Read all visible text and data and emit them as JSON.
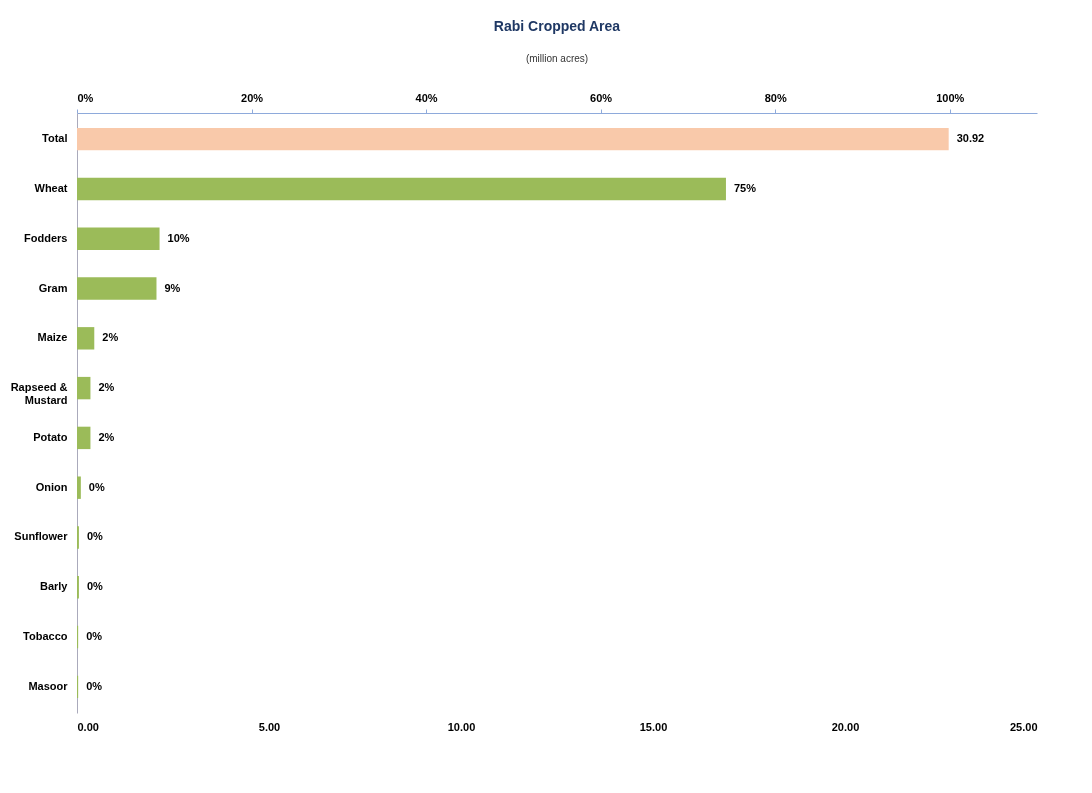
{
  "chart_data": {
    "type": "bar",
    "orientation": "horizontal",
    "title": "Rabi Cropped Area",
    "subtitle": "(million acres)",
    "categories": [
      "Total",
      "Wheat",
      "Fodders",
      "Gram",
      "Maize",
      "Rapseed & Mustard",
      "Potato",
      "Onion",
      "Sunflower",
      "Barly",
      "Tobacco",
      "Masoor"
    ],
    "values": [
      22.7,
      16.9,
      2.15,
      2.07,
      0.45,
      0.35,
      0.35,
      0.1,
      0.05,
      0.05,
      0.03,
      0.03
    ],
    "colors": [
      "#f9c9aa",
      "#9bbb59",
      "#9bbb59",
      "#9bbb59",
      "#9bbb59",
      "#9bbb59",
      "#9bbb59",
      "#9bbb59",
      "#9bbb59",
      "#9bbb59",
      "#9bbb59",
      "#9bbb59"
    ],
    "annotations": [
      {
        "text": "30.92",
        "x": 22.7,
        "y": "Total"
      },
      {
        "text": "75%",
        "x": 16.9,
        "y": "Wheat"
      },
      {
        "text": "10%",
        "x": 2.15,
        "y": "Fodders"
      },
      {
        "text": "9%",
        "x": 2.07,
        "y": "Gram"
      },
      {
        "text": "2%",
        "x": 0.45,
        "y": "Maize"
      },
      {
        "text": "2%",
        "x": 0.35,
        "y": "Rapseed & Mustard"
      },
      {
        "text": "2%",
        "x": 0.35,
        "y": "Potato"
      },
      {
        "text": "0%",
        "x": 0.1,
        "y": "Onion"
      },
      {
        "text": "0%",
        "x": 0.05,
        "y": "Sunflower"
      },
      {
        "text": "0%",
        "x": 0.05,
        "y": "Barly"
      },
      {
        "text": "0%",
        "x": 0.03,
        "y": "Tobacco"
      },
      {
        "text": "0%",
        "x": 0.03,
        "y": "Masoor"
      }
    ],
    "xlim": [
      0,
      25
    ],
    "xticks": [
      {
        "value": 0,
        "label": "0.00"
      },
      {
        "value": 5,
        "label": "5.00"
      },
      {
        "value": 10,
        "label": "10.00"
      },
      {
        "value": 15,
        "label": "15.00"
      },
      {
        "value": 20,
        "label": "20.00"
      },
      {
        "value": 25,
        "label": "25.00"
      }
    ],
    "x2lim": [
      0,
      110
    ],
    "x2ticks": [
      {
        "value": 0,
        "label": "0%"
      },
      {
        "value": 20,
        "label": "20%"
      },
      {
        "value": 40,
        "label": "40%"
      },
      {
        "value": 60,
        "label": "60%"
      },
      {
        "value": 80,
        "label": "80%"
      },
      {
        "value": 100,
        "label": "100%"
      }
    ],
    "grid": false
  }
}
